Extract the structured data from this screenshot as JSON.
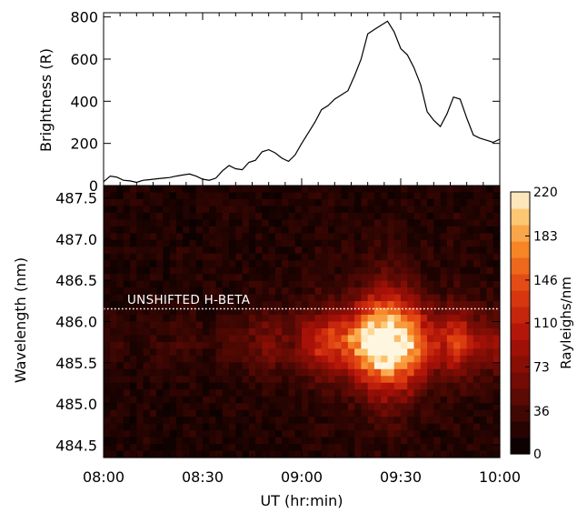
{
  "chart_data": [
    {
      "type": "line",
      "ylabel": "Brightness (R)",
      "xlim_minutes": [
        0,
        120
      ],
      "ylim": [
        0,
        820
      ],
      "yticks": [
        "0",
        "200",
        "400",
        "600",
        "800"
      ],
      "x": [
        "08:00",
        "08:02",
        "08:04",
        "08:06",
        "08:08",
        "08:10",
        "08:12",
        "08:14",
        "08:16",
        "08:18",
        "08:20",
        "08:22",
        "08:24",
        "08:26",
        "08:28",
        "08:30",
        "08:32",
        "08:34",
        "08:36",
        "08:38",
        "08:40",
        "08:42",
        "08:44",
        "08:46",
        "08:48",
        "08:50",
        "08:52",
        "08:54",
        "08:56",
        "08:58",
        "09:00",
        "09:02",
        "09:04",
        "09:06",
        "09:08",
        "09:10",
        "09:12",
        "09:14",
        "09:16",
        "09:18",
        "09:20",
        "09:22",
        "09:24",
        "09:26",
        "09:28",
        "09:30",
        "09:32",
        "09:34",
        "09:36",
        "09:38",
        "09:40",
        "09:42",
        "09:44",
        "09:46",
        "09:48",
        "09:50",
        "09:52",
        "09:54",
        "09:56",
        "09:58",
        "10:00"
      ],
      "values": [
        18,
        45,
        40,
        25,
        22,
        15,
        25,
        28,
        32,
        35,
        38,
        45,
        50,
        55,
        45,
        30,
        25,
        35,
        70,
        95,
        80,
        75,
        110,
        120,
        160,
        170,
        155,
        130,
        115,
        145,
        200,
        250,
        300,
        360,
        380,
        410,
        430,
        450,
        520,
        600,
        720,
        740,
        760,
        780,
        730,
        650,
        620,
        560,
        480,
        350,
        310,
        280,
        340,
        420,
        410,
        320,
        240,
        225,
        215,
        205,
        220
      ]
    },
    {
      "type": "heatmap",
      "ylabel": "Wavelength (nm)",
      "xlabel": "UT (hr:min)",
      "xticks": [
        "08:00",
        "08:30",
        "09:00",
        "09:30",
        "10:00"
      ],
      "yticks": [
        "484.5",
        "485.0",
        "485.5",
        "486.0",
        "486.5",
        "487.0",
        "487.5"
      ],
      "ylim": [
        484.35,
        487.65
      ],
      "annotation": "UNSHIFTED H-BETA",
      "unshifted_wavelength": 486.13,
      "peak_time": "09:27",
      "peak_wavelength": 485.75,
      "colorbar": {
        "label": "Rayleighs/nm",
        "ticks": [
          "0",
          "36",
          "73",
          "110",
          "146",
          "183",
          "220"
        ],
        "range": [
          0,
          220
        ]
      }
    }
  ]
}
